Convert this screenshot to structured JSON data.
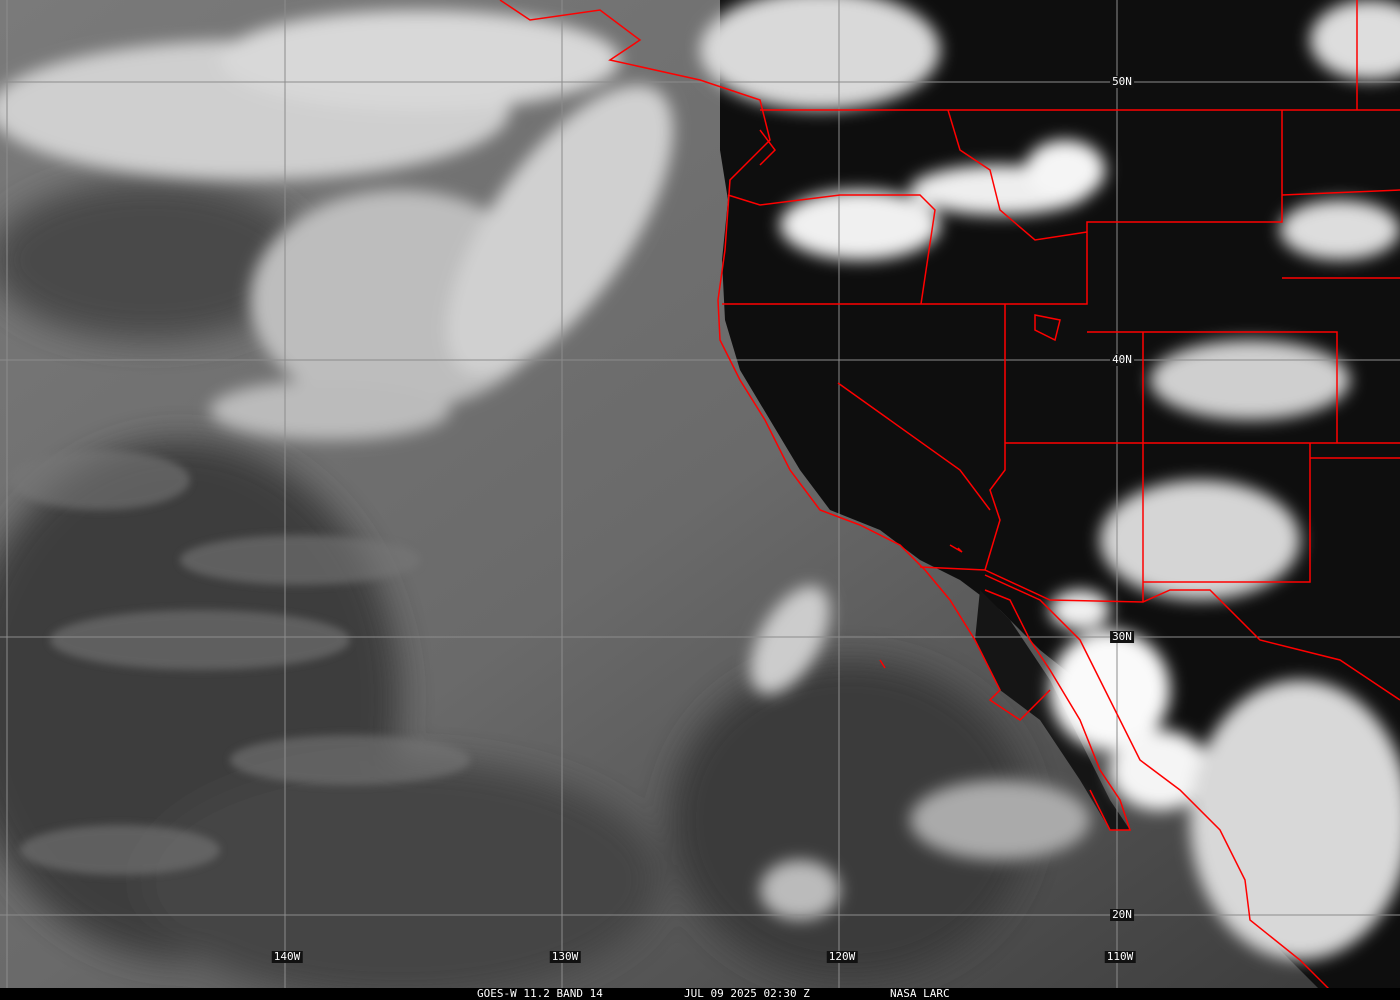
{
  "image": {
    "caption": {
      "satellite": "GOES-W 11.2 BAND 14",
      "datetime": "JUL 09 2025 02:30 Z",
      "source": "NASA LARC"
    },
    "grid_labels": {
      "lat": [
        "50N",
        "40N",
        "30N",
        "20N"
      ],
      "lon": [
        "140W",
        "130W",
        "120W",
        "110W"
      ]
    },
    "colors": {
      "borders": "#ff0000",
      "grid": "#8c8c8c",
      "text": "#ffffff"
    }
  }
}
